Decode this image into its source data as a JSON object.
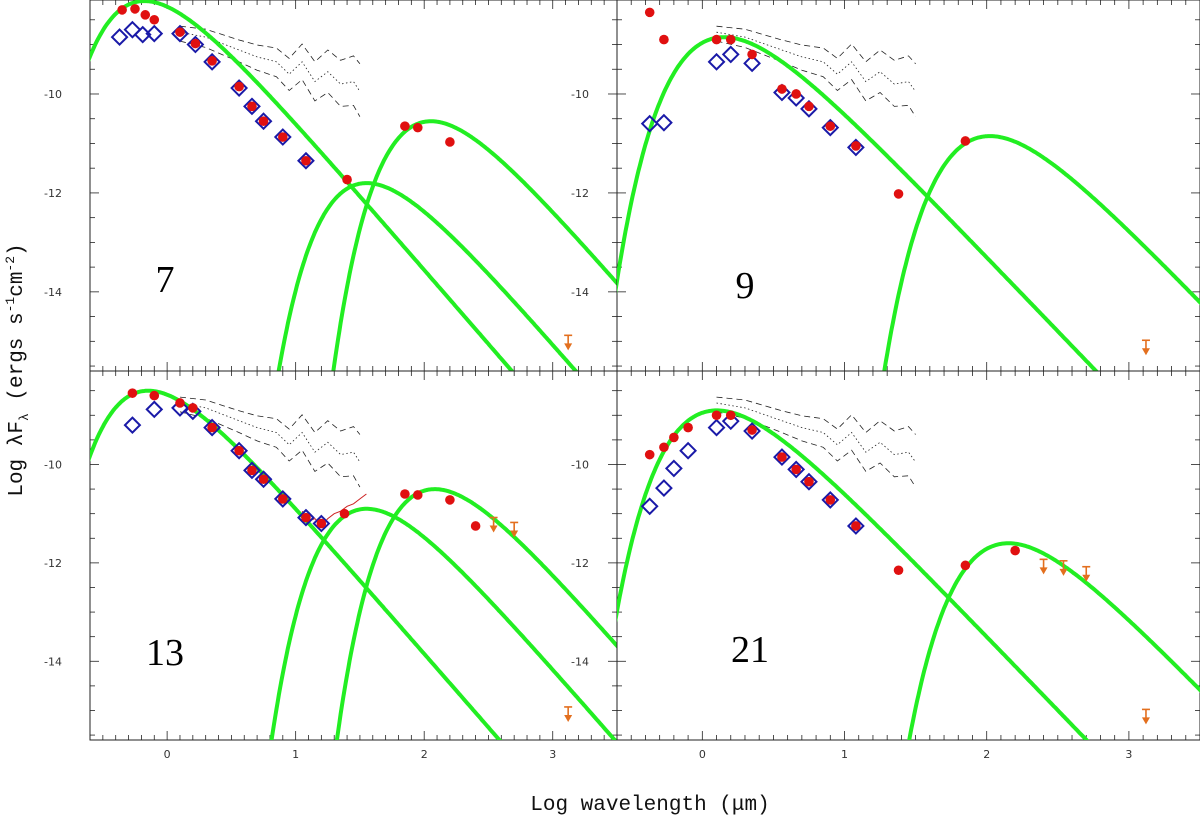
{
  "figure": {
    "xlabel": "Log wavelength (μm)",
    "ylabel": "Log λF",
    "ylabel_sub": "λ",
    "ylabel_units": " (ergs s",
    "ylabel_units_exp1": "-1",
    "ylabel_units_mid": "cm",
    "ylabel_units_exp2": "-2",
    "ylabel_units_close": ")",
    "colors": {
      "model": "#22ee22",
      "photometry": "#e01010",
      "iso_points": "#1a1aa8",
      "upper_limit": "#e36f1e",
      "spectrum": "#cc2222",
      "comparison": "#222222"
    }
  },
  "chart_data": [
    {
      "panel": "7",
      "type": "scatter",
      "xlim": [
        -0.6,
        3.5
      ],
      "ylim": [
        -15.6,
        -8.1
      ],
      "xticks": [
        "0",
        "1",
        "2",
        "3"
      ],
      "yticks": [
        "-10",
        "-12",
        "-14"
      ],
      "series": [
        {
          "kind": "photometry",
          "x": [
            -0.35,
            -0.25,
            -0.17,
            -0.1,
            0.1,
            0.22,
            0.35,
            0.56,
            0.66,
            0.75,
            0.9,
            1.08,
            1.4,
            1.85,
            1.95,
            2.2
          ],
          "y": [
            -8.3,
            -8.28,
            -8.4,
            -8.5,
            -8.75,
            -8.98,
            -9.33,
            -9.85,
            -10.25,
            -10.55,
            -10.87,
            -11.35,
            -11.73,
            -10.65,
            -10.68,
            -10.97
          ]
        },
        {
          "kind": "iso_points",
          "x": [
            -0.37,
            -0.27,
            -0.19,
            -0.1,
            0.1,
            0.22,
            0.35,
            0.56,
            0.66,
            0.75,
            0.9,
            1.08
          ],
          "y": [
            -8.85,
            -8.7,
            -8.8,
            -8.78,
            -8.78,
            -9.0,
            -9.35,
            -9.88,
            -10.25,
            -10.55,
            -10.87,
            -11.35
          ]
        },
        {
          "kind": "upper_limit",
          "x": [
            3.12
          ],
          "y": [
            -15.0
          ]
        },
        {
          "kind": "model_photosphere",
          "peak_x": -0.28,
          "peak_y": -8.17
        },
        {
          "kind": "model_warm_dust",
          "peak_x": 1.45,
          "peak_y": -11.85
        },
        {
          "kind": "model_cold_dust",
          "peak_x": 1.95,
          "peak_y": -10.6
        },
        {
          "kind": "comparison_band"
        }
      ]
    },
    {
      "panel": "9",
      "type": "scatter",
      "xlim": [
        -0.6,
        3.5
      ],
      "ylim": [
        -15.6,
        -8.1
      ],
      "xticks": [
        "0",
        "1",
        "2",
        "3"
      ],
      "yticks": [
        "-10",
        "-12",
        "-14"
      ],
      "series": [
        {
          "kind": "photometry",
          "x": [
            -0.37,
            -0.27,
            0.1,
            0.2,
            0.35,
            0.56,
            0.66,
            0.75,
            0.9,
            1.08,
            1.38,
            1.85
          ],
          "y": [
            -8.35,
            -8.9,
            -8.9,
            -8.9,
            -9.2,
            -9.9,
            -10.0,
            -10.25,
            -10.65,
            -11.05,
            -12.02,
            -10.95
          ]
        },
        {
          "kind": "iso_points",
          "x": [
            -0.37,
            -0.27,
            0.1,
            0.2,
            0.35,
            0.56,
            0.66,
            0.75,
            0.9,
            1.08
          ],
          "y": [
            -10.6,
            -10.58,
            -9.35,
            -9.2,
            -9.38,
            -9.97,
            -10.08,
            -10.3,
            -10.68,
            -11.08
          ]
        },
        {
          "kind": "upper_limit",
          "x": [
            3.12
          ],
          "y": [
            -15.1
          ]
        },
        {
          "kind": "model_photosphere",
          "peak_x": 0.05,
          "peak_y": -8.9
        },
        {
          "kind": "model_cold_dust",
          "peak_x": 1.92,
          "peak_y": -10.9
        },
        {
          "kind": "comparison_band"
        }
      ]
    },
    {
      "panel": "13",
      "type": "scatter",
      "xlim": [
        -0.6,
        3.5
      ],
      "ylim": [
        -15.6,
        -8.1
      ],
      "xticks": [
        "0",
        "1",
        "2",
        "3"
      ],
      "yticks": [
        "-10",
        "-12",
        "-14"
      ],
      "series": [
        {
          "kind": "photometry",
          "x": [
            -0.27,
            -0.1,
            0.1,
            0.2,
            0.35,
            0.56,
            0.66,
            0.75,
            0.9,
            1.08,
            1.2,
            1.38,
            1.85,
            1.95,
            2.2,
            2.4
          ],
          "y": [
            -8.55,
            -8.6,
            -8.75,
            -8.85,
            -9.25,
            -9.72,
            -10.12,
            -10.3,
            -10.7,
            -11.08,
            -11.2,
            -11.0,
            -10.6,
            -10.62,
            -10.72,
            -11.25
          ]
        },
        {
          "kind": "iso_points",
          "x": [
            -0.27,
            -0.1,
            0.1,
            0.2,
            0.35,
            0.56,
            0.66,
            0.75,
            0.9,
            1.08,
            1.2
          ],
          "y": [
            -9.2,
            -8.88,
            -8.85,
            -8.92,
            -9.25,
            -9.72,
            -10.12,
            -10.3,
            -10.7,
            -11.08,
            -11.2
          ]
        },
        {
          "kind": "upper_limit",
          "x": [
            2.54,
            2.7,
            3.12
          ],
          "y": [
            -11.2,
            -11.3,
            -15.05
          ]
        },
        {
          "kind": "irs_spectrum",
          "x": [
            1.05,
            1.1,
            1.15,
            1.2,
            1.25,
            1.3,
            1.35,
            1.4,
            1.45,
            1.5,
            1.55
          ],
          "y": [
            -10.95,
            -11.15,
            -11.1,
            -11.25,
            -11.1,
            -11.0,
            -10.95,
            -10.85,
            -10.8,
            -10.7,
            -10.6
          ]
        },
        {
          "kind": "model_photosphere",
          "peak_x": -0.25,
          "peak_y": -8.55
        },
        {
          "kind": "model_warm_dust",
          "peak_x": 1.45,
          "peak_y": -10.95
        },
        {
          "kind": "model_cold_dust",
          "peak_x": 1.98,
          "peak_y": -10.55
        },
        {
          "kind": "comparison_band"
        }
      ]
    },
    {
      "panel": "21",
      "type": "scatter",
      "xlim": [
        -0.6,
        3.5
      ],
      "ylim": [
        -15.6,
        -8.1
      ],
      "xticks": [
        "0",
        "1",
        "2",
        "3"
      ],
      "yticks": [
        "-10",
        "-12",
        "-14"
      ],
      "series": [
        {
          "kind": "photometry",
          "x": [
            -0.37,
            -0.27,
            -0.2,
            -0.1,
            0.1,
            0.2,
            0.35,
            0.56,
            0.66,
            0.75,
            0.9,
            1.08,
            1.38,
            1.85,
            2.2
          ],
          "y": [
            -9.8,
            -9.65,
            -9.45,
            -9.25,
            -9.0,
            -9.0,
            -9.3,
            -9.85,
            -10.1,
            -10.35,
            -10.72,
            -11.25,
            -12.15,
            -12.05,
            -11.75
          ]
        },
        {
          "kind": "iso_points",
          "x": [
            -0.37,
            -0.27,
            -0.2,
            -0.1,
            0.1,
            0.2,
            0.35,
            0.56,
            0.66,
            0.75,
            0.9,
            1.08
          ],
          "y": [
            -10.85,
            -10.48,
            -10.08,
            -9.72,
            -9.25,
            -9.12,
            -9.32,
            -9.85,
            -10.1,
            -10.35,
            -10.72,
            -11.25
          ]
        },
        {
          "kind": "upper_limit",
          "x": [
            2.4,
            2.54,
            2.7,
            3.12
          ],
          "y": [
            -12.05,
            -12.08,
            -12.2,
            -15.1
          ]
        },
        {
          "kind": "model_photosphere",
          "peak_x": 0.0,
          "peak_y": -8.95
        },
        {
          "kind": "model_cold_dust",
          "peak_x": 2.05,
          "peak_y": -11.65
        },
        {
          "kind": "comparison_band"
        }
      ]
    }
  ]
}
